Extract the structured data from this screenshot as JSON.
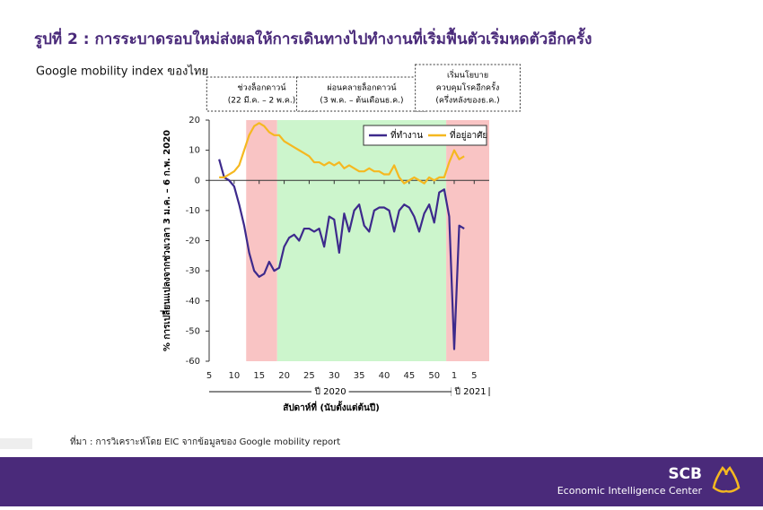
{
  "page_title": "รูปที่ 2 : การระบาดรอบใหม่ส่งผลให้การเดินทางไปทำงานที่เริ่มฟื้นตัวเริ่มหดตัวอีกครั้ง",
  "source": "ที่มา : การวิเคราะห์โดย EIC จากข้อมูลของ Google mobility report",
  "footer": {
    "brand": "SCB",
    "unit": "Economic Intelligence Center"
  },
  "chart_data": {
    "type": "line",
    "title": "Google mobility index ของไทย",
    "y_label": "% การเปลี่ยนแปลงจากช่วงเวลา 3 ม.ค. – 6 ก.พ. 2020",
    "x_label": "สัปดาห์ที่ (นับตั้งแต่ต้นปี)",
    "x": [
      7,
      8,
      9,
      10,
      11,
      12,
      13,
      14,
      15,
      16,
      17,
      18,
      19,
      20,
      21,
      22,
      23,
      24,
      25,
      26,
      27,
      28,
      29,
      30,
      31,
      32,
      33,
      34,
      35,
      36,
      37,
      38,
      39,
      40,
      41,
      42,
      43,
      44,
      45,
      46,
      47,
      48,
      49,
      50,
      51,
      52,
      53,
      54,
      55,
      56
    ],
    "series": [
      {
        "name": "ที่ทำงาน",
        "color": "#3d2a8c",
        "values": [
          7,
          1,
          0,
          -2,
          -8,
          -15,
          -24,
          -30,
          -32,
          -31,
          -27,
          -30,
          -29,
          -22,
          -19,
          -18,
          -20,
          -16,
          -16,
          -17,
          -16,
          -22,
          -12,
          -13,
          -24,
          -11,
          -17,
          -10,
          -8,
          -15,
          -17,
          -10,
          -9,
          -9,
          -10,
          -17,
          -10,
          -8,
          -9,
          -12,
          -17,
          -11,
          -8,
          -14,
          -4,
          -3,
          -12,
          -56,
          -15,
          -16
        ]
      },
      {
        "name": "ที่อยู่อาศัย",
        "color": "#f5b820",
        "values": [
          1,
          1,
          2,
          3,
          5,
          10,
          15,
          18,
          19,
          18,
          16,
          15,
          15,
          13,
          12,
          11,
          10,
          9,
          8,
          6,
          6,
          5,
          6,
          5,
          6,
          4,
          5,
          4,
          3,
          3,
          4,
          3,
          3,
          2,
          2,
          5,
          1,
          -1,
          0,
          1,
          0,
          -1,
          1,
          0,
          1,
          1,
          6,
          10,
          7,
          8
        ]
      }
    ],
    "xlim": [
      5,
      61
    ],
    "xticks": [
      5,
      10,
      15,
      20,
      25,
      30,
      35,
      40,
      45,
      50,
      {
        "value": 54,
        "label": "1"
      },
      {
        "value": 58,
        "label": "5"
      }
    ],
    "ylim": [
      -60,
      20
    ],
    "yticks": [
      -60,
      -50,
      -40,
      -30,
      -20,
      -10,
      0,
      10,
      20
    ],
    "regions": [
      {
        "range": [
          12.4,
          18.6
        ],
        "color": "#f9c4c4",
        "label": [
          "ช่วงล็อกดาวน์",
          "(22 มี.ค. – 2 พ.ค.)"
        ]
      },
      {
        "range": [
          18.6,
          52.4
        ],
        "color": "#ccf5cc",
        "label": [
          "ผ่อนคลายล็อกดาวน์",
          "(3 พ.ค. – ต้นเดือนธ.ค.)"
        ]
      },
      {
        "range": [
          52.4,
          61
        ],
        "color": "#f9c4c4",
        "label": [
          "เริ่มนโยบาย",
          "ควบคุมโรคอีกครั้ง",
          "(ครึ่งหลังของธ.ค.)"
        ]
      }
    ],
    "x_groups": [
      {
        "label": "ปี 2020",
        "range": [
          5,
          53.5
        ]
      },
      {
        "label": "ปี 2021",
        "range": [
          53.5,
          61
        ]
      }
    ],
    "legend": "upper right"
  }
}
